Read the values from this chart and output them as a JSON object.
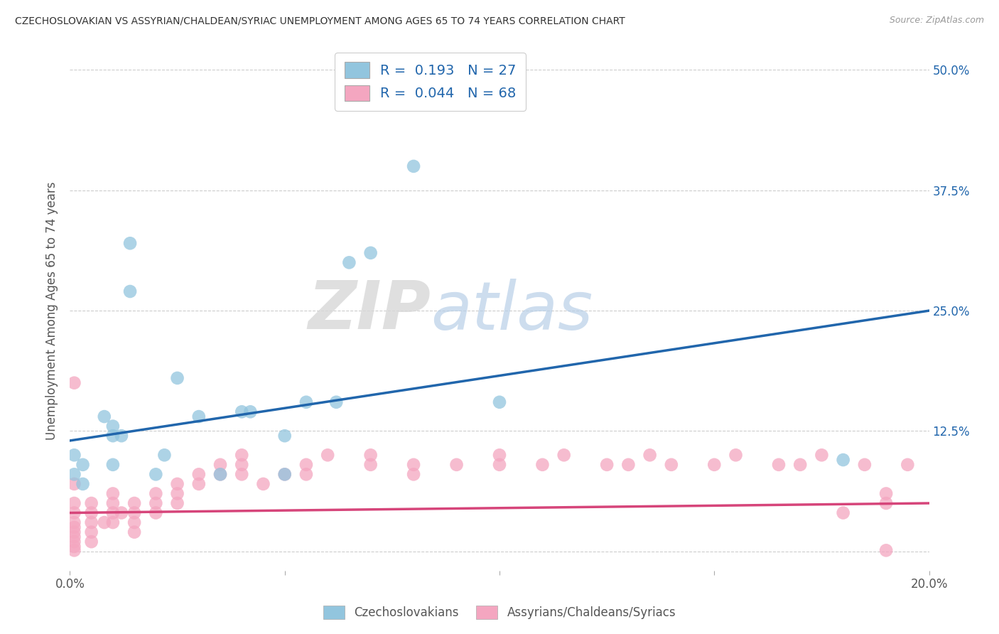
{
  "title": "CZECHOSLOVAKIAN VS ASSYRIAN/CHALDEAN/SYRIAC UNEMPLOYMENT AMONG AGES 65 TO 74 YEARS CORRELATION CHART",
  "source": "Source: ZipAtlas.com",
  "ylabel": "Unemployment Among Ages 65 to 74 years",
  "xlim": [
    0.0,
    0.2
  ],
  "ylim": [
    -0.02,
    0.52
  ],
  "xticks": [
    0.0,
    0.05,
    0.1,
    0.15,
    0.2
  ],
  "yticks": [
    0.0,
    0.125,
    0.25,
    0.375,
    0.5
  ],
  "ytick_labels": [
    "",
    "12.5%",
    "25.0%",
    "37.5%",
    "50.0%"
  ],
  "xtick_labels": [
    "0.0%",
    "",
    "",
    "",
    "20.0%"
  ],
  "legend_blue_R": "0.193",
  "legend_blue_N": "27",
  "legend_pink_R": "0.044",
  "legend_pink_N": "68",
  "blue_color": "#92c5de",
  "pink_color": "#f4a6c0",
  "blue_line_color": "#2166ac",
  "pink_line_color": "#d6457a",
  "ytick_color": "#2166ac",
  "watermark_zip": "ZIP",
  "watermark_atlas": "atlas",
  "blue_scatter_x": [
    0.001,
    0.001,
    0.003,
    0.003,
    0.008,
    0.01,
    0.01,
    0.01,
    0.012,
    0.014,
    0.014,
    0.02,
    0.022,
    0.025,
    0.03,
    0.035,
    0.04,
    0.042,
    0.05,
    0.05,
    0.055,
    0.062,
    0.065,
    0.07,
    0.08,
    0.1,
    0.18
  ],
  "blue_scatter_y": [
    0.08,
    0.1,
    0.07,
    0.09,
    0.14,
    0.09,
    0.12,
    0.13,
    0.12,
    0.27,
    0.32,
    0.08,
    0.1,
    0.18,
    0.14,
    0.08,
    0.145,
    0.145,
    0.08,
    0.12,
    0.155,
    0.155,
    0.3,
    0.31,
    0.4,
    0.155,
    0.095
  ],
  "pink_scatter_x": [
    0.001,
    0.001,
    0.001,
    0.001,
    0.001,
    0.001,
    0.001,
    0.001,
    0.001,
    0.001,
    0.001,
    0.005,
    0.005,
    0.005,
    0.005,
    0.005,
    0.008,
    0.01,
    0.01,
    0.01,
    0.01,
    0.012,
    0.015,
    0.015,
    0.015,
    0.015,
    0.02,
    0.02,
    0.02,
    0.025,
    0.025,
    0.025,
    0.03,
    0.03,
    0.035,
    0.035,
    0.04,
    0.04,
    0.04,
    0.045,
    0.05,
    0.055,
    0.055,
    0.06,
    0.07,
    0.07,
    0.08,
    0.08,
    0.09,
    0.1,
    0.1,
    0.11,
    0.115,
    0.125,
    0.13,
    0.135,
    0.14,
    0.15,
    0.155,
    0.165,
    0.17,
    0.175,
    0.18,
    0.185,
    0.19,
    0.19,
    0.195,
    0.19
  ],
  "pink_scatter_y": [
    0.175,
    0.07,
    0.05,
    0.04,
    0.03,
    0.025,
    0.02,
    0.015,
    0.01,
    0.005,
    0.001,
    0.05,
    0.04,
    0.03,
    0.02,
    0.01,
    0.03,
    0.06,
    0.05,
    0.04,
    0.03,
    0.04,
    0.05,
    0.04,
    0.03,
    0.02,
    0.06,
    0.05,
    0.04,
    0.07,
    0.06,
    0.05,
    0.08,
    0.07,
    0.09,
    0.08,
    0.1,
    0.09,
    0.08,
    0.07,
    0.08,
    0.09,
    0.08,
    0.1,
    0.1,
    0.09,
    0.09,
    0.08,
    0.09,
    0.1,
    0.09,
    0.09,
    0.1,
    0.09,
    0.09,
    0.1,
    0.09,
    0.09,
    0.1,
    0.09,
    0.09,
    0.1,
    0.04,
    0.09,
    0.05,
    0.06,
    0.09,
    0.001
  ],
  "blue_trendline_x": [
    0.0,
    0.2
  ],
  "blue_trendline_y": [
    0.115,
    0.25
  ],
  "pink_trendline_x": [
    0.0,
    0.2
  ],
  "pink_trendline_y": [
    0.04,
    0.05
  ],
  "bottom_legend_blue": "Czechoslovakians",
  "bottom_legend_pink": "Assyrians/Chaldeans/Syriacs"
}
